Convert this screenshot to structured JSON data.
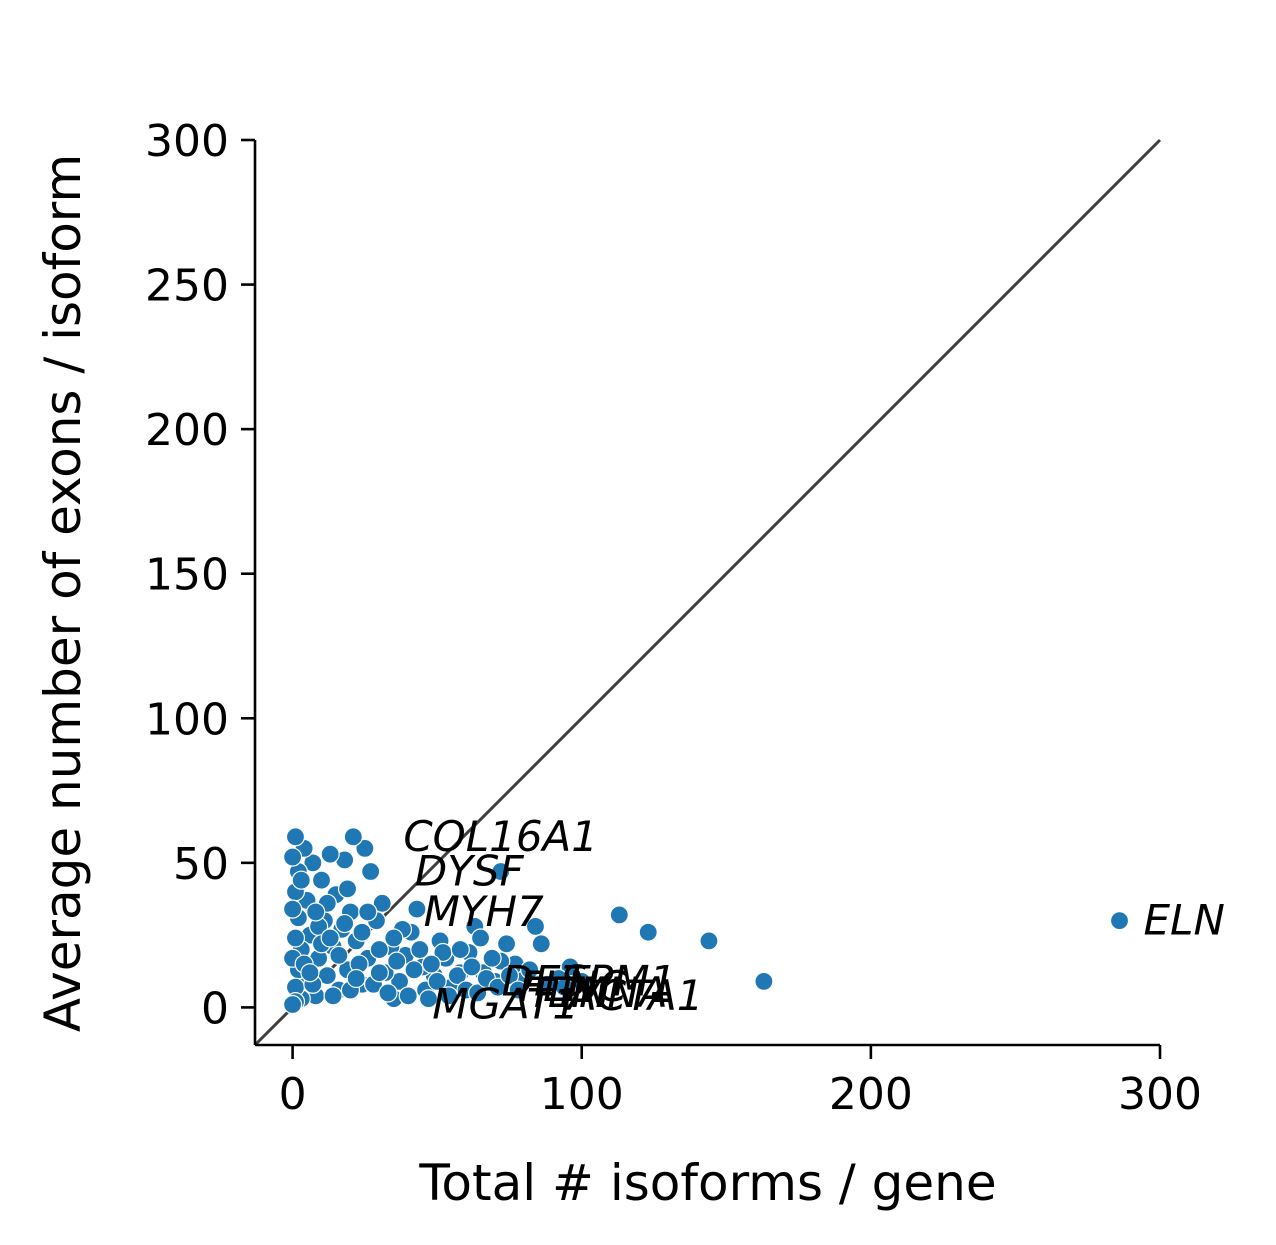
{
  "chart_data": {
    "type": "scatter",
    "xlabel": "Total # isoforms / gene",
    "ylabel": "Average number of exons / isoform",
    "xlim": [
      -13,
      300
    ],
    "ylim": [
      -13,
      300
    ],
    "xticks": [
      0,
      100,
      200,
      300
    ],
    "yticks": [
      0,
      50,
      100,
      150,
      200,
      250,
      300
    ],
    "xtick_labels": [
      "0",
      "100",
      "200",
      "300"
    ],
    "ytick_labels": [
      "0",
      "50",
      "100",
      "150",
      "200",
      "250",
      "300"
    ],
    "identity_line": {
      "from": [
        -13,
        -13
      ],
      "to": [
        300,
        300
      ],
      "color": "#404040"
    },
    "grid": false,
    "point_color": "#1f77b4",
    "points": [
      [
        286,
        30
      ],
      [
        163,
        9
      ],
      [
        144,
        23
      ],
      [
        123,
        26
      ],
      [
        113,
        32
      ],
      [
        96,
        14
      ],
      [
        92,
        10
      ],
      [
        86,
        22
      ],
      [
        84,
        28
      ],
      [
        80,
        10
      ],
      [
        77,
        15
      ],
      [
        74,
        22
      ],
      [
        72,
        47
      ],
      [
        72,
        16
      ],
      [
        70,
        9
      ],
      [
        66,
        12
      ],
      [
        63,
        28
      ],
      [
        61,
        19
      ],
      [
        58,
        12
      ],
      [
        55,
        7
      ],
      [
        53,
        17
      ],
      [
        51,
        23
      ],
      [
        49,
        11
      ],
      [
        46,
        6
      ],
      [
        45,
        14
      ],
      [
        43,
        34
      ],
      [
        41,
        26
      ],
      [
        39,
        18
      ],
      [
        37,
        9
      ],
      [
        35,
        3
      ],
      [
        34,
        21
      ],
      [
        32,
        12
      ],
      [
        31,
        36
      ],
      [
        29,
        30
      ],
      [
        27,
        47
      ],
      [
        26,
        17
      ],
      [
        25,
        55
      ],
      [
        24,
        8
      ],
      [
        22,
        23
      ],
      [
        21,
        59
      ],
      [
        20,
        33
      ],
      [
        19,
        13
      ],
      [
        18,
        51
      ],
      [
        17,
        27
      ],
      [
        16,
        6
      ],
      [
        15,
        39
      ],
      [
        14,
        21
      ],
      [
        13,
        53
      ],
      [
        12,
        11
      ],
      [
        11,
        30
      ],
      [
        10,
        44
      ],
      [
        9,
        17
      ],
      [
        8,
        4
      ],
      [
        7,
        50
      ],
      [
        6,
        25
      ],
      [
        5,
        37
      ],
      [
        5,
        10
      ],
      [
        4,
        55
      ],
      [
        3,
        20
      ],
      [
        3,
        3
      ],
      [
        2,
        47
      ],
      [
        2,
        31
      ],
      [
        2,
        13
      ],
      [
        1,
        59
      ],
      [
        1,
        40
      ],
      [
        1,
        24
      ],
      [
        1,
        7
      ],
      [
        1,
        2
      ],
      [
        0,
        52
      ],
      [
        0,
        34
      ],
      [
        0,
        17
      ],
      [
        0,
        1
      ],
      [
        4,
        15
      ],
      [
        7,
        8
      ],
      [
        9,
        28
      ],
      [
        12,
        36
      ],
      [
        14,
        4
      ],
      [
        16,
        18
      ],
      [
        18,
        29
      ],
      [
        20,
        6
      ],
      [
        23,
        15
      ],
      [
        26,
        33
      ],
      [
        28,
        8
      ],
      [
        30,
        20
      ],
      [
        33,
        5
      ],
      [
        36,
        16
      ],
      [
        38,
        27
      ],
      [
        40,
        4
      ],
      [
        42,
        13
      ],
      [
        44,
        20
      ],
      [
        47,
        3
      ],
      [
        50,
        9
      ],
      [
        52,
        19
      ],
      [
        54,
        4
      ],
      [
        57,
        11
      ],
      [
        60,
        6
      ],
      [
        62,
        14
      ],
      [
        64,
        5
      ],
      [
        67,
        10
      ],
      [
        69,
        17
      ],
      [
        71,
        7
      ],
      [
        75,
        11
      ],
      [
        78,
        6
      ],
      [
        82,
        13
      ],
      [
        88,
        8
      ],
      [
        94,
        7
      ],
      [
        100,
        9
      ],
      [
        6,
        12
      ],
      [
        10,
        22
      ],
      [
        19,
        41
      ],
      [
        24,
        26
      ],
      [
        30,
        12
      ],
      [
        3,
        44
      ],
      [
        8,
        33
      ],
      [
        13,
        24
      ],
      [
        22,
        10
      ],
      [
        35,
        24
      ],
      [
        48,
        15
      ],
      [
        58,
        20
      ],
      [
        65,
        24
      ]
    ],
    "annotations": [
      {
        "text": "ELN",
        "x": 286,
        "y": 30
      },
      {
        "text": "COL16A1",
        "x": 30,
        "y": 59
      },
      {
        "text": "DYSF",
        "x": 34,
        "y": 47
      },
      {
        "text": "MYH7",
        "x": 37,
        "y": 33
      },
      {
        "text": "DES",
        "x": 64,
        "y": 9
      },
      {
        "text": "TPM1",
        "x": 85,
        "y": 9
      },
      {
        "text": "FLNC",
        "x": 70,
        "y": 7
      },
      {
        "text": "TTN",
        "x": 73,
        "y": 5
      },
      {
        "text": "LMNA",
        "x": 80,
        "y": 5
      },
      {
        "text": "ACTA1",
        "x": 87,
        "y": 4
      },
      {
        "text": "MGAT1",
        "x": 40,
        "y": 1
      }
    ]
  }
}
